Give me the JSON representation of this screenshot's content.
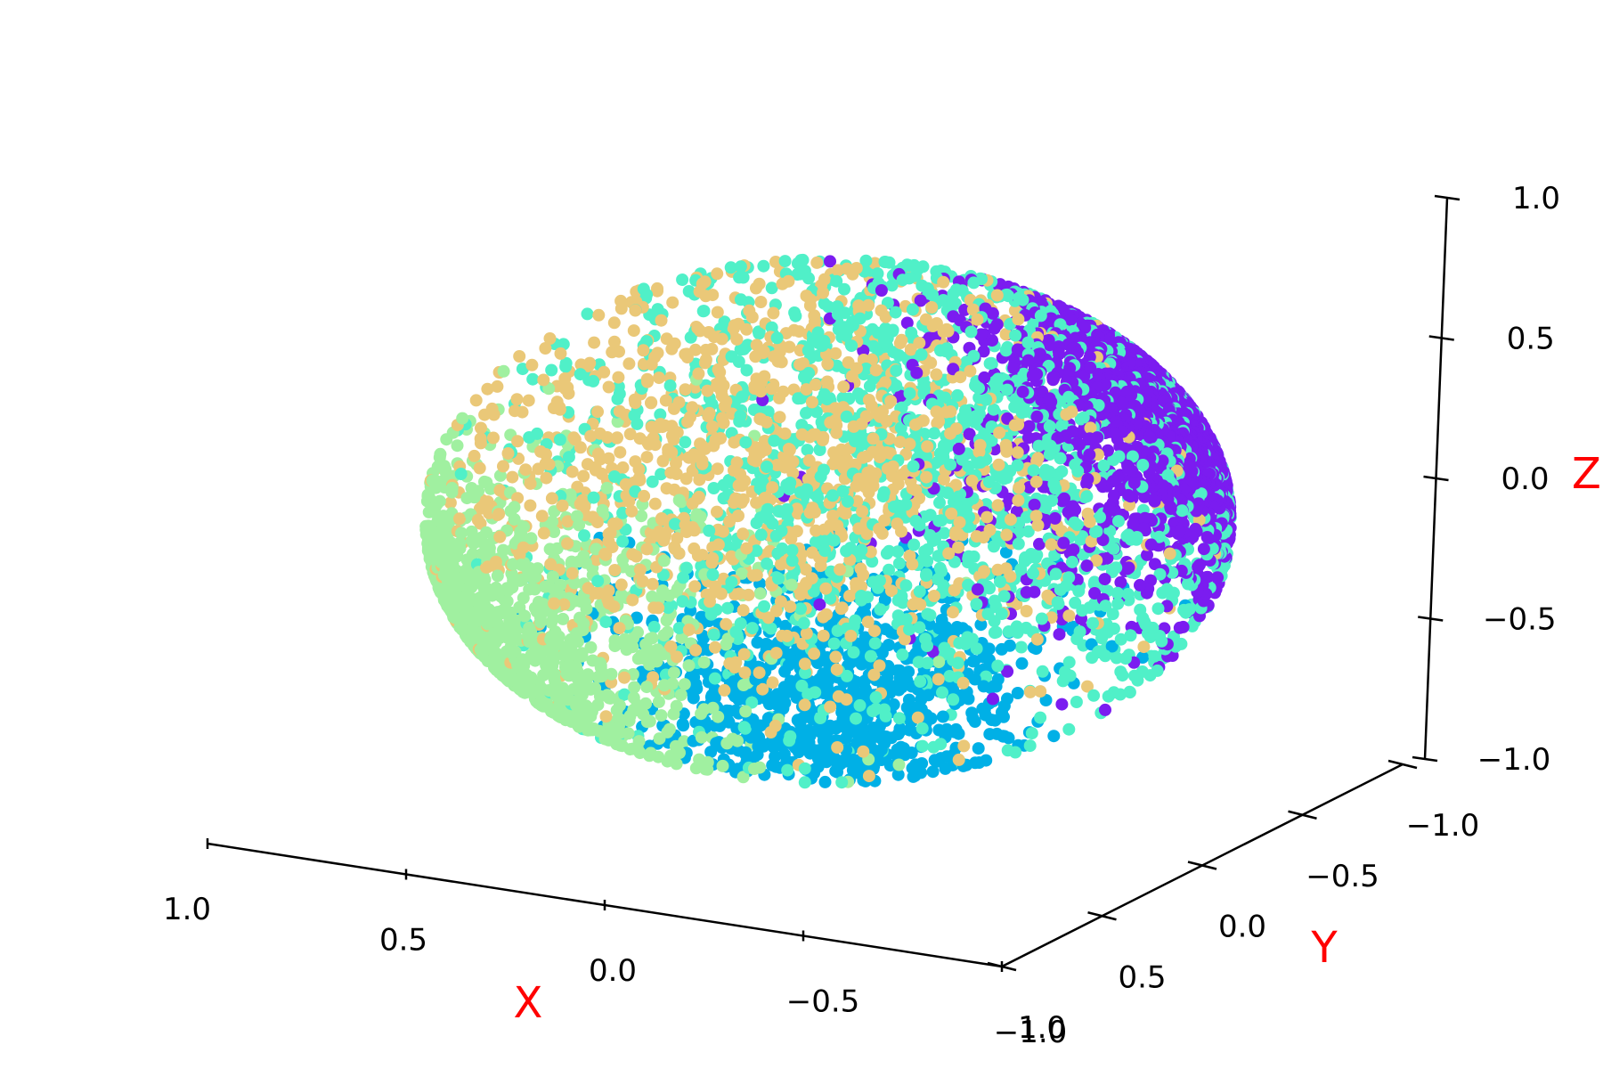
{
  "chart_data": {
    "type": "scatter",
    "projection": "3d",
    "xlabel": "X",
    "ylabel": "Y",
    "zlabel": "Z",
    "label_color": "#ff0000",
    "xlim": [
      -1,
      1
    ],
    "ylim": [
      -1,
      1
    ],
    "zlim": [
      -1,
      1
    ],
    "x_ticks": [
      "1.0",
      "0.5",
      "0.0",
      "−0.5",
      "−1.0"
    ],
    "y_ticks": [
      "−1.0",
      "−0.5",
      "0.0",
      "0.5",
      "1.0"
    ],
    "z_ticks": [
      "1.0",
      "0.5",
      "0.0",
      "−0.5",
      "−1.0"
    ],
    "grid": false,
    "series": [
      {
        "color": "#7b1cf0",
        "count": 1400,
        "center": [
          -0.55,
          -0.75,
          0.45
        ],
        "spread": 0.35
      },
      {
        "color": "#00b0e6",
        "count": 900,
        "center": [
          -0.35,
          0.35,
          -0.85
        ],
        "spread": 0.3
      },
      {
        "color": "#a0f0a0",
        "count": 1100,
        "center": [
          0.85,
          0.45,
          -0.4
        ],
        "spread": 0.35
      },
      {
        "color": "#eac878",
        "count": 1100,
        "center": [
          0.4,
          -0.2,
          0.3
        ],
        "spread": 0.45
      },
      {
        "color": "#50f0c8",
        "count": 1800,
        "center": [
          -0.15,
          -0.3,
          0.25
        ],
        "spread": 0.5
      }
    ]
  }
}
